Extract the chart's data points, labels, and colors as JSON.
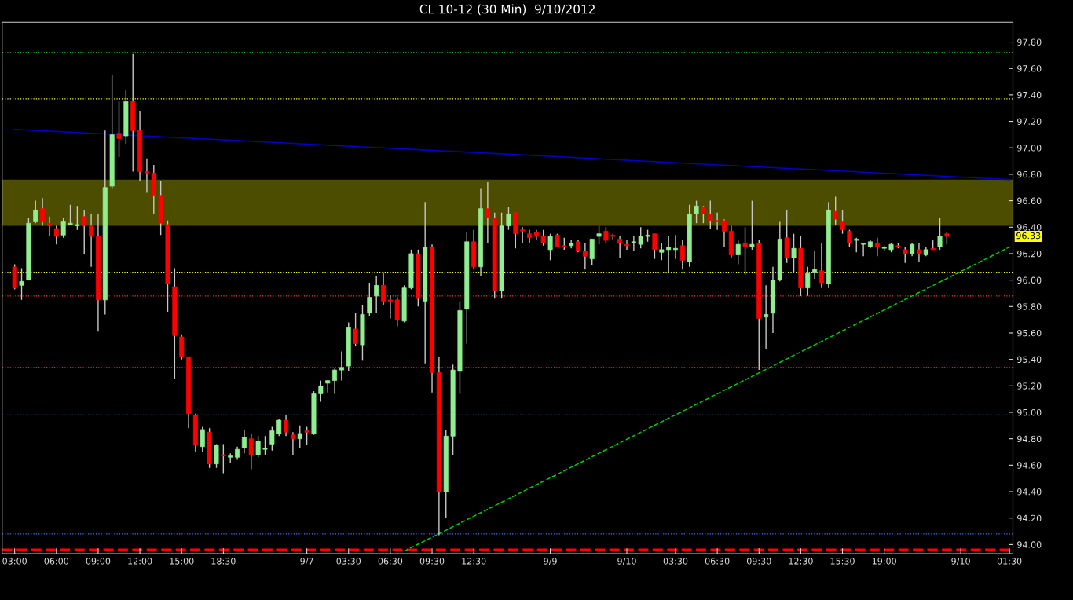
{
  "chart_data": {
    "type": "candlestick",
    "title": "CL 10-12 (30 Min)  9/10/2012",
    "categories": [
      "03:00",
      null,
      null,
      null,
      null,
      null,
      "06:00",
      null,
      null,
      null,
      null,
      null,
      "09:00",
      null,
      null,
      null,
      null,
      null,
      "12:00",
      null,
      null,
      null,
      null,
      null,
      "15:00",
      null,
      null,
      null,
      null,
      null,
      "18:30",
      null,
      null,
      null,
      null,
      null,
      null,
      null,
      null,
      null,
      null,
      null,
      "9/7",
      null,
      null,
      null,
      null,
      null,
      "03:30",
      null,
      null,
      null,
      null,
      null,
      "06:30",
      null,
      null,
      null,
      null,
      null,
      "09:30",
      null,
      null,
      null,
      null,
      null,
      "12:30",
      null,
      null,
      null,
      null,
      null,
      null,
      null,
      null,
      null,
      null,
      "9/9",
      null,
      null,
      null,
      null,
      null,
      null,
      null,
      null,
      null,
      null,
      "9/10",
      null,
      null,
      null,
      null,
      null,
      null,
      "03:30",
      null,
      null,
      null,
      null,
      null,
      "06:30",
      null,
      null,
      null,
      null,
      null,
      "09:30",
      null,
      null,
      null,
      null,
      null,
      "12:30",
      null,
      null,
      null,
      null,
      null,
      "15:30",
      null,
      null,
      null,
      null,
      null,
      "19:00",
      null,
      null,
      null,
      null,
      null,
      null,
      null,
      null,
      null,
      null,
      "9/10",
      null,
      null,
      null,
      null,
      null,
      null,
      "01:30"
    ],
    "ohlc": [
      [
        96.1,
        96.12,
        95.93,
        95.94
      ],
      [
        95.96,
        96.09,
        95.85,
        95.99
      ],
      [
        96.0,
        96.47,
        96.0,
        96.43
      ],
      [
        96.44,
        96.6,
        96.43,
        96.53
      ],
      [
        96.54,
        96.62,
        96.41,
        96.44
      ],
      [
        96.43,
        96.48,
        96.33,
        96.41
      ],
      [
        96.39,
        96.41,
        96.27,
        96.33
      ],
      [
        96.34,
        96.47,
        96.32,
        96.44
      ],
      [
        96.42,
        96.57,
        96.42,
        96.43
      ],
      [
        96.41,
        96.56,
        96.38,
        96.42
      ],
      [
        96.48,
        96.53,
        96.2,
        96.41
      ],
      [
        96.41,
        96.5,
        96.1,
        96.33
      ],
      [
        96.33,
        96.5,
        95.61,
        95.85
      ],
      [
        95.85,
        97.13,
        95.74,
        96.7
      ],
      [
        96.71,
        97.55,
        96.69,
        97.1
      ],
      [
        97.11,
        97.35,
        96.93,
        97.07
      ],
      [
        97.09,
        97.44,
        97.03,
        97.35
      ],
      [
        97.35,
        97.71,
        96.82,
        97.13
      ],
      [
        97.13,
        97.28,
        96.75,
        96.82
      ],
      [
        96.82,
        96.92,
        96.66,
        96.81
      ],
      [
        96.81,
        96.87,
        96.5,
        96.64
      ],
      [
        96.64,
        96.75,
        96.34,
        96.43
      ],
      [
        96.42,
        96.45,
        95.76,
        95.97
      ],
      [
        95.95,
        96.09,
        95.25,
        95.58
      ],
      [
        95.57,
        95.59,
        95.4,
        95.42
      ],
      [
        95.42,
        95.42,
        94.88,
        94.99
      ],
      [
        94.98,
        94.99,
        94.7,
        94.75
      ],
      [
        94.74,
        94.89,
        94.7,
        94.87
      ],
      [
        94.85,
        94.88,
        94.58,
        94.61
      ],
      [
        94.61,
        94.76,
        94.58,
        94.75
      ],
      [
        94.68,
        94.76,
        94.54,
        94.67
      ],
      [
        94.66,
        94.69,
        94.62,
        94.67
      ],
      [
        94.66,
        94.74,
        94.64,
        94.72
      ],
      [
        94.73,
        94.87,
        94.69,
        94.81
      ],
      [
        94.8,
        94.84,
        94.57,
        94.68
      ],
      [
        94.68,
        94.82,
        94.66,
        94.78
      ],
      [
        94.72,
        94.82,
        94.68,
        94.73
      ],
      [
        94.76,
        94.89,
        94.71,
        94.86
      ],
      [
        94.84,
        94.95,
        94.82,
        94.94
      ],
      [
        94.94,
        94.98,
        94.82,
        94.85
      ],
      [
        94.83,
        94.85,
        94.68,
        94.8
      ],
      [
        94.8,
        94.9,
        94.73,
        94.84
      ],
      [
        94.86,
        94.89,
        94.75,
        94.85
      ],
      [
        94.84,
        95.16,
        94.83,
        95.14
      ],
      [
        95.14,
        95.24,
        95.08,
        95.2
      ],
      [
        95.22,
        95.24,
        95.15,
        95.24
      ],
      [
        95.24,
        95.33,
        95.14,
        95.32
      ],
      [
        95.32,
        95.46,
        95.24,
        95.34
      ],
      [
        95.35,
        95.68,
        95.31,
        95.64
      ],
      [
        95.63,
        95.75,
        95.5,
        95.52
      ],
      [
        95.51,
        95.81,
        95.39,
        95.74
      ],
      [
        95.75,
        95.98,
        95.73,
        95.87
      ],
      [
        95.88,
        96.03,
        95.75,
        95.96
      ],
      [
        95.96,
        96.06,
        95.81,
        95.84
      ],
      [
        95.85,
        95.89,
        95.71,
        95.84
      ],
      [
        95.85,
        95.87,
        95.65,
        95.7
      ],
      [
        95.69,
        95.96,
        95.68,
        95.94
      ],
      [
        95.94,
        96.23,
        95.93,
        96.2
      ],
      [
        96.2,
        96.23,
        95.8,
        95.86
      ],
      [
        95.84,
        96.59,
        95.37,
        96.25
      ],
      [
        96.25,
        96.27,
        95.15,
        95.3
      ],
      [
        95.3,
        95.42,
        94.07,
        94.4
      ],
      [
        94.4,
        94.87,
        94.2,
        94.82
      ],
      [
        94.82,
        95.36,
        94.68,
        95.32
      ],
      [
        95.31,
        95.84,
        95.14,
        95.77
      ],
      [
        95.78,
        96.36,
        95.52,
        96.29
      ],
      [
        96.29,
        96.38,
        96.08,
        96.1
      ],
      [
        96.1,
        96.69,
        96.03,
        96.54
      ],
      [
        96.54,
        96.74,
        96.28,
        96.47
      ],
      [
        96.47,
        96.51,
        95.86,
        95.92
      ],
      [
        95.92,
        96.51,
        95.86,
        96.41
      ],
      [
        96.41,
        96.55,
        96.38,
        96.5
      ],
      [
        96.51,
        96.51,
        96.24,
        96.35
      ],
      [
        96.38,
        96.4,
        96.28,
        96.37
      ],
      [
        96.35,
        96.38,
        96.28,
        96.32
      ],
      [
        96.36,
        96.38,
        96.3,
        96.33
      ],
      [
        96.33,
        96.38,
        96.26,
        96.28
      ],
      [
        96.23,
        96.35,
        96.15,
        96.33
      ],
      [
        96.34,
        96.35,
        96.25,
        96.25
      ],
      [
        96.26,
        96.32,
        96.23,
        96.25
      ],
      [
        96.26,
        96.3,
        96.24,
        96.28
      ],
      [
        96.29,
        96.3,
        96.21,
        96.22
      ],
      [
        96.22,
        96.28,
        96.08,
        96.18
      ],
      [
        96.16,
        96.31,
        96.11,
        96.31
      ],
      [
        96.33,
        96.41,
        96.27,
        96.35
      ],
      [
        96.37,
        96.4,
        96.28,
        96.3
      ],
      [
        96.34,
        96.35,
        96.3,
        96.33
      ],
      [
        96.31,
        96.33,
        96.17,
        96.28
      ],
      [
        96.27,
        96.3,
        96.23,
        96.26
      ],
      [
        96.28,
        96.33,
        96.22,
        96.29
      ],
      [
        96.27,
        96.4,
        96.24,
        96.33
      ],
      [
        96.33,
        96.38,
        96.29,
        96.34
      ],
      [
        96.35,
        96.35,
        96.16,
        96.23
      ],
      [
        96.21,
        96.28,
        96.15,
        96.23
      ],
      [
        96.23,
        96.33,
        96.06,
        96.25
      ],
      [
        96.23,
        96.34,
        96.16,
        96.24
      ],
      [
        96.26,
        96.3,
        96.08,
        96.15
      ],
      [
        96.14,
        96.57,
        96.1,
        96.5
      ],
      [
        96.5,
        96.6,
        96.43,
        96.56
      ],
      [
        96.55,
        96.56,
        96.43,
        96.5
      ],
      [
        96.5,
        96.6,
        96.39,
        96.45
      ],
      [
        96.45,
        96.51,
        96.38,
        96.44
      ],
      [
        96.45,
        96.46,
        96.25,
        96.37
      ],
      [
        96.37,
        96.41,
        96.17,
        96.19
      ],
      [
        96.19,
        96.3,
        96.12,
        96.27
      ],
      [
        96.28,
        96.4,
        96.04,
        96.25
      ],
      [
        96.25,
        96.6,
        96.23,
        96.27
      ],
      [
        96.28,
        96.3,
        95.32,
        95.71
      ],
      [
        95.72,
        95.96,
        95.48,
        95.74
      ],
      [
        95.75,
        96.1,
        95.6,
        96.0
      ],
      [
        96.0,
        96.44,
        95.99,
        96.31
      ],
      [
        96.32,
        96.53,
        96.13,
        96.17
      ],
      [
        96.17,
        96.35,
        96.06,
        96.24
      ],
      [
        96.24,
        96.33,
        95.88,
        95.94
      ],
      [
        95.94,
        96.1,
        95.88,
        96.05
      ],
      [
        96.06,
        96.22,
        96.01,
        96.08
      ],
      [
        96.07,
        96.28,
        95.94,
        95.98
      ],
      [
        95.97,
        96.59,
        95.94,
        96.53
      ],
      [
        96.52,
        96.63,
        96.42,
        96.46
      ],
      [
        96.44,
        96.53,
        96.35,
        96.38
      ],
      [
        96.37,
        96.38,
        96.25,
        96.28
      ],
      [
        96.3,
        96.32,
        96.21,
        96.31
      ],
      [
        96.27,
        96.28,
        96.18,
        96.28
      ],
      [
        96.25,
        96.3,
        96.24,
        96.29
      ],
      [
        96.28,
        96.32,
        96.18,
        96.25
      ],
      [
        96.24,
        96.26,
        96.22,
        96.25
      ],
      [
        96.23,
        96.28,
        96.21,
        96.27
      ],
      [
        96.26,
        96.28,
        96.24,
        96.25
      ],
      [
        96.23,
        96.25,
        96.13,
        96.2
      ],
      [
        96.2,
        96.28,
        96.18,
        96.27
      ],
      [
        96.23,
        96.28,
        96.14,
        96.2
      ],
      [
        96.19,
        96.25,
        96.18,
        96.23
      ],
      [
        96.24,
        96.3,
        96.23,
        96.23
      ],
      [
        96.25,
        96.47,
        96.23,
        96.33
      ],
      [
        96.35,
        96.36,
        96.27,
        96.33
      ],
      null,
      null,
      null,
      null,
      null,
      null,
      null,
      null,
      null
    ],
    "colors": [
      "#ff0000",
      "#90ee90",
      "#90ee90",
      "#90ee90",
      "#ff0000",
      "#ff0000",
      "#ff0000",
      "#90ee90",
      "#90ee90",
      "#90ee90",
      "#ff0000",
      "#ff0000",
      "#ff0000",
      "#90ee90",
      "#90ee90",
      "#ff0000",
      "#90ee90",
      "#ff0000",
      "#ff0000",
      "#ff0000",
      "#ff0000",
      "#ff0000",
      "#ff0000",
      "#ff0000",
      "#ff0000",
      "#ff0000",
      "#ff0000",
      "#90ee90",
      "#ff0000",
      "#90ee90",
      "#ff0000",
      "#90ee90",
      "#90ee90",
      "#90ee90",
      "#ff0000",
      "#90ee90",
      "#90ee90",
      "#90ee90",
      "#90ee90",
      "#ff0000",
      "#ff0000",
      "#90ee90",
      "#ff0000",
      "#90ee90",
      "#90ee90",
      "#90ee90",
      "#90ee90",
      "#90ee90",
      "#90ee90",
      "#ff0000",
      "#90ee90",
      "#90ee90",
      "#90ee90",
      "#ff0000",
      "#ff0000",
      "#ff0000",
      "#90ee90",
      "#90ee90",
      "#ff0000",
      "#90ee90",
      "#ff0000",
      "#ff0000",
      "#90ee90",
      "#90ee90",
      "#90ee90",
      "#90ee90",
      "#ff0000",
      "#90ee90",
      "#ff0000",
      "#ff0000",
      "#90ee90",
      "#90ee90",
      "#ff0000",
      "#ff0000",
      "#ff0000",
      "#ff0000",
      "#ff0000",
      "#90ee90",
      "#ff0000",
      "#ff0000",
      "#90ee90",
      "#ff0000",
      "#ff0000",
      "#90ee90",
      "#90ee90",
      "#ff0000",
      "#ff0000",
      "#ff0000",
      "#ff0000",
      "#90ee90",
      "#90ee90",
      "#90ee90",
      "#ff0000",
      "#90ee90",
      "#90ee90",
      "#90ee90",
      "#ff0000",
      "#90ee90",
      "#90ee90",
      "#ff0000",
      "#ff0000",
      "#ff0000",
      "#ff0000",
      "#ff0000",
      "#90ee90",
      "#ff0000",
      "#90ee90",
      "#ff0000",
      "#90ee90",
      "#90ee90",
      "#90ee90",
      "#ff0000",
      "#90ee90",
      "#ff0000",
      "#90ee90",
      "#90ee90",
      "#ff0000",
      "#90ee90",
      "#ff0000",
      "#ff0000",
      "#ff0000",
      "#90ee90",
      "#90ee90",
      "#90ee90",
      "#ff0000",
      "#90ee90",
      "#90ee90",
      "#ff0000",
      "#ff0000",
      "#90ee90",
      "#ff0000",
      "#90ee90",
      "#ff0000",
      "#90ee90",
      "#ff0000",
      null,
      null,
      null,
      null,
      null,
      null,
      null,
      null,
      null
    ],
    "series": [
      {
        "type": "line",
        "color": "#0000cc",
        "line_style": "solid",
        "values": [
          97.14,
          null,
          null,
          null,
          null,
          null,
          null,
          null,
          null,
          null,
          null,
          null,
          null,
          null,
          null,
          null,
          null,
          null,
          null,
          null,
          null,
          null,
          null,
          null,
          null,
          null,
          null,
          null,
          null,
          null,
          null,
          null,
          null,
          null,
          null,
          null,
          null,
          null,
          null,
          null,
          null,
          null,
          null,
          null,
          null,
          null,
          null,
          null,
          null,
          null,
          null,
          null,
          null,
          null,
          null,
          null,
          null,
          null,
          null,
          null,
          null,
          null,
          null,
          null,
          null,
          null,
          null,
          null,
          null,
          null,
          null,
          null,
          null,
          null,
          null,
          null,
          null,
          null,
          null,
          null,
          null,
          null,
          null,
          null,
          null,
          null,
          null,
          null,
          null,
          null,
          null,
          null,
          null,
          null,
          null,
          null,
          null,
          null,
          null,
          null,
          null,
          null,
          null,
          null,
          null,
          null,
          null,
          null,
          null,
          null,
          null,
          null,
          null,
          null,
          null,
          null,
          null,
          null,
          null,
          null,
          null,
          null,
          null,
          null,
          null,
          null,
          null,
          null,
          null,
          null,
          null,
          null,
          null,
          null,
          null,
          null,
          null,
          null,
          null,
          null,
          null,
          null,
          null,
          96.76
        ]
      },
      {
        "type": "line",
        "color": "#00cc00",
        "line_style": "dashed",
        "values": [
          null,
          null,
          null,
          null,
          null,
          null,
          null,
          null,
          null,
          null,
          null,
          null,
          null,
          null,
          null,
          null,
          null,
          null,
          null,
          null,
          null,
          null,
          null,
          null,
          null,
          null,
          null,
          null,
          null,
          null,
          null,
          null,
          null,
          null,
          null,
          null,
          null,
          null,
          null,
          null,
          null,
          null,
          null,
          null,
          null,
          null,
          null,
          null,
          null,
          null,
          null,
          null,
          null,
          null,
          null,
          null,
          93.95,
          null,
          null,
          null,
          null,
          null,
          null,
          null,
          null,
          null,
          null,
          null,
          null,
          null,
          null,
          null,
          null,
          null,
          null,
          null,
          null,
          null,
          null,
          null,
          null,
          null,
          null,
          null,
          null,
          null,
          null,
          null,
          null,
          null,
          null,
          null,
          null,
          null,
          null,
          null,
          null,
          null,
          null,
          null,
          null,
          null,
          null,
          null,
          null,
          null,
          null,
          null,
          null,
          null,
          null,
          null,
          null,
          null,
          null,
          null,
          null,
          null,
          null,
          null,
          null,
          null,
          null,
          null,
          null,
          null,
          null,
          null,
          null,
          null,
          null,
          null,
          null,
          null,
          null,
          null,
          null,
          null,
          null,
          null,
          null,
          null,
          null,
          96.25
        ]
      }
    ],
    "ref_lines": [
      {
        "axis": "y",
        "value": 97.72,
        "color": "#33cc33",
        "line_style": "dotted"
      },
      {
        "axis": "y",
        "value": 97.37,
        "color": "#ffff33",
        "line_style": "dotted"
      },
      {
        "axis": "y",
        "value": 96.06,
        "color": "#ffff33",
        "line_style": "dotted"
      },
      {
        "axis": "y",
        "value": 95.88,
        "color": "#ff3333",
        "line_style": "dotted"
      },
      {
        "axis": "y",
        "value": 95.34,
        "color": "#ff3333",
        "line_style": "dotted"
      },
      {
        "axis": "y",
        "value": 94.98,
        "color": "#4477ff",
        "line_style": "dotted"
      },
      {
        "axis": "y",
        "value": 94.08,
        "color": "#4477ff",
        "line_style": "dotted"
      },
      {
        "axis": "y",
        "value": 93.96,
        "color": "#ff0000",
        "line_style": "dashed"
      }
    ],
    "bands": [
      {
        "axis": "y",
        "from": 96.41,
        "to": 96.76,
        "color": "#ffff00"
      }
    ],
    "annotations": [
      {
        "text": "96.33",
        "y": 96.33
      }
    ],
    "ylim": [
      93.93,
      97.95
    ],
    "yticks": [
      {
        "value": 94.0,
        "label": "94.00"
      },
      {
        "value": 94.2,
        "label": "94.20"
      },
      {
        "value": 94.4,
        "label": "94.40"
      },
      {
        "value": 94.6,
        "label": "94.60"
      },
      {
        "value": 94.8,
        "label": "94.80"
      },
      {
        "value": 95.0,
        "label": "95.00"
      },
      {
        "value": 95.2,
        "label": "95.20"
      },
      {
        "value": 95.4,
        "label": "95.40"
      },
      {
        "value": 95.6,
        "label": "95.60"
      },
      {
        "value": 95.8,
        "label": "95.80"
      },
      {
        "value": 96.0,
        "label": "96.00"
      },
      {
        "value": 96.2,
        "label": "96.20"
      },
      {
        "value": 96.4,
        "label": "96.40"
      },
      {
        "value": 96.6,
        "label": "96.60"
      },
      {
        "value": 96.8,
        "label": "96.80"
      },
      {
        "value": 97.0,
        "label": "97.00"
      },
      {
        "value": 97.2,
        "label": "97.20"
      },
      {
        "value": 97.4,
        "label": "97.40"
      },
      {
        "value": 97.6,
        "label": "97.60"
      },
      {
        "value": 97.8,
        "label": "97.80"
      }
    ]
  }
}
